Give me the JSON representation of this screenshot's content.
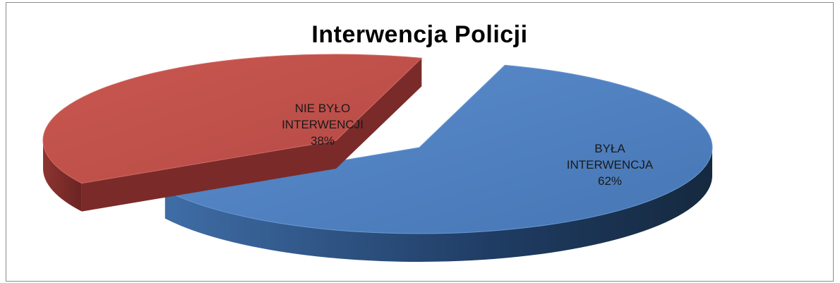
{
  "chart_data": {
    "type": "pie",
    "title": "Interwencja Policji",
    "exploded": true,
    "three_d": true,
    "legend": "none",
    "slices": [
      {
        "label_lines": [
          "BYŁA",
          "INTERWENCJA"
        ],
        "value": 62,
        "value_label": "62%",
        "color": "#4F81BD"
      },
      {
        "label_lines": [
          "NIE BYŁO",
          "INTERWENCJI"
        ],
        "value": 38,
        "value_label": "38%",
        "color": "#C0504D"
      }
    ]
  }
}
